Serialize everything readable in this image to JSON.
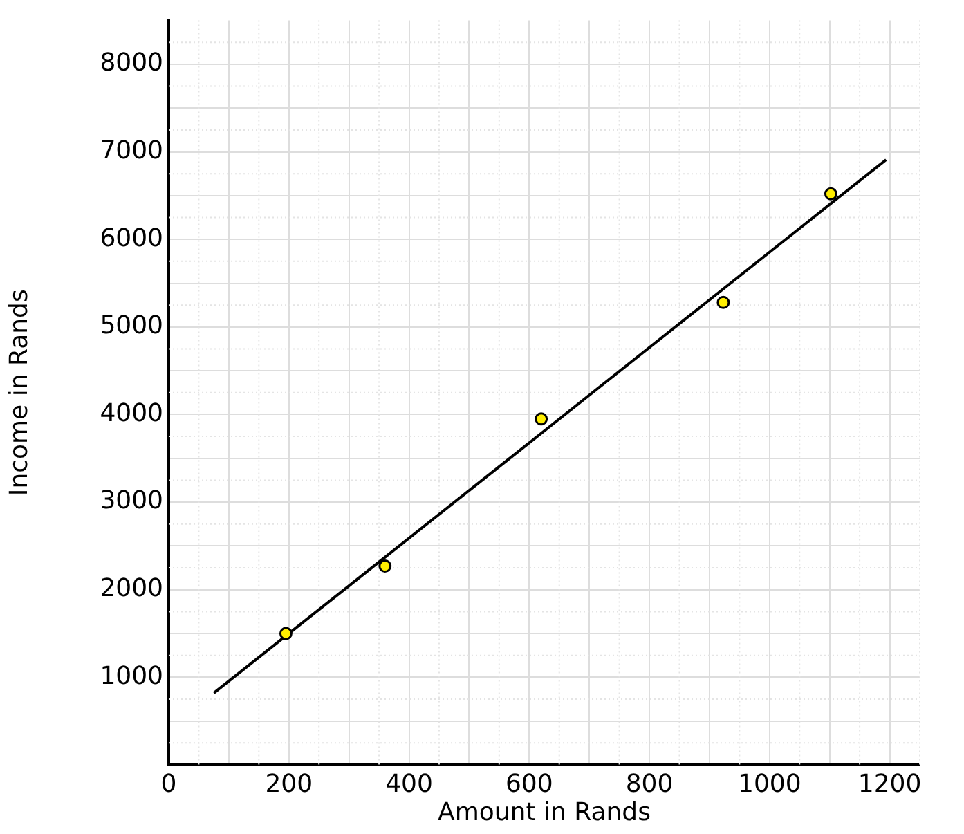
{
  "chart_data": {
    "type": "scatter",
    "xlabel": "Amount in Rands",
    "ylabel": "Income in Rands",
    "series": [
      {
        "type": "scatter",
        "color": "#ffee00",
        "x": [
          195,
          360,
          620,
          923,
          1102
        ],
        "values": [
          1500,
          2270,
          3950,
          5280,
          6520
        ]
      },
      {
        "type": "line",
        "color": "#000000",
        "marker": "none",
        "x": [
          75,
          1194
        ],
        "values": [
          820,
          6910
        ]
      }
    ],
    "xlim": [
      0,
      1250
    ],
    "xticks": [
      0,
      {
        "value": 100,
        "label": null
      },
      200,
      {
        "value": 300,
        "label": null
      },
      400,
      {
        "value": 500,
        "label": null
      },
      600,
      {
        "value": 700,
        "label": null
      },
      800,
      {
        "value": 900,
        "label": null
      },
      1000,
      {
        "value": 1100,
        "label": null
      },
      1200
    ],
    "ylim": [
      0,
      8500
    ],
    "yticks": [
      {
        "value": 0,
        "label": null
      },
      {
        "value": 500,
        "label": null
      },
      1000,
      {
        "value": 1500,
        "label": null
      },
      2000,
      {
        "value": 2500,
        "label": null
      },
      3000,
      {
        "value": 3500,
        "label": null
      },
      4000,
      {
        "value": 4500,
        "label": null
      },
      5000,
      {
        "value": 5500,
        "label": null
      },
      6000,
      {
        "value": 6500,
        "label": null
      },
      7000,
      {
        "value": 7500,
        "label": null
      },
      8000
    ],
    "grid": true,
    "legend": false,
    "marker": "circle",
    "line_style": "solid"
  }
}
